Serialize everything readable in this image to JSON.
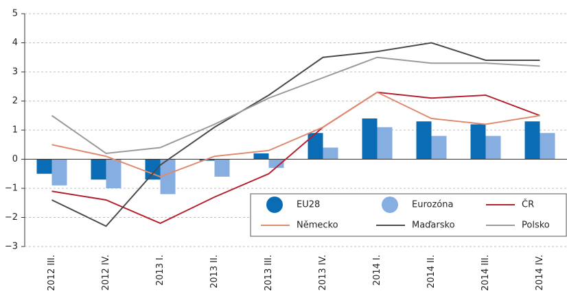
{
  "chart_data": {
    "type": "bar-line",
    "categories": [
      "2012 III.",
      "2012 IV.",
      "2013 I.",
      "2013 II.",
      "2013 III.",
      "2013 IV.",
      "2014 I.",
      "2014 II.",
      "2014 III.",
      "2014 IV."
    ],
    "series": [
      {
        "name": "EU28",
        "type": "bar",
        "color": "#0a6cb5",
        "values": [
          -0.5,
          -0.7,
          -0.7,
          -0.05,
          0.2,
          0.9,
          1.4,
          1.3,
          1.2,
          1.3
        ]
      },
      {
        "name": "Eurozóna",
        "type": "bar",
        "color": "#86aee0",
        "values": [
          -0.9,
          -1.0,
          -1.2,
          -0.6,
          -0.3,
          0.4,
          1.1,
          0.8,
          0.8,
          0.9
        ]
      },
      {
        "name": "ČR",
        "type": "line",
        "color": "#b5202e",
        "values": [
          -1.1,
          -1.4,
          -2.2,
          -1.3,
          -0.5,
          1.1,
          2.3,
          2.1,
          2.2,
          1.5
        ]
      },
      {
        "name": "Německo",
        "type": "line",
        "color": "#e08a6f",
        "values": [
          0.5,
          0.1,
          -0.6,
          0.1,
          0.3,
          1.1,
          2.3,
          1.4,
          1.2,
          1.5
        ]
      },
      {
        "name": "Maďarsko",
        "type": "line",
        "color": "#4a4a4a",
        "values": [
          -1.4,
          -2.3,
          -0.2,
          1.1,
          2.2,
          3.5,
          3.7,
          4.0,
          3.4,
          3.4
        ]
      },
      {
        "name": "Polsko",
        "type": "line",
        "color": "#9a9a9a",
        "values": [
          1.5,
          0.2,
          0.4,
          1.2,
          2.1,
          2.8,
          3.5,
          3.3,
          3.3,
          3.2
        ]
      }
    ],
    "ylim": [
      -3,
      5
    ],
    "yticks": [
      {
        "value": -3,
        "label": "−3"
      },
      {
        "value": -2,
        "label": "−2"
      },
      {
        "value": -1,
        "label": "−1"
      },
      0,
      1,
      2,
      3,
      4,
      5
    ],
    "grid": true,
    "legend": "lower right"
  }
}
